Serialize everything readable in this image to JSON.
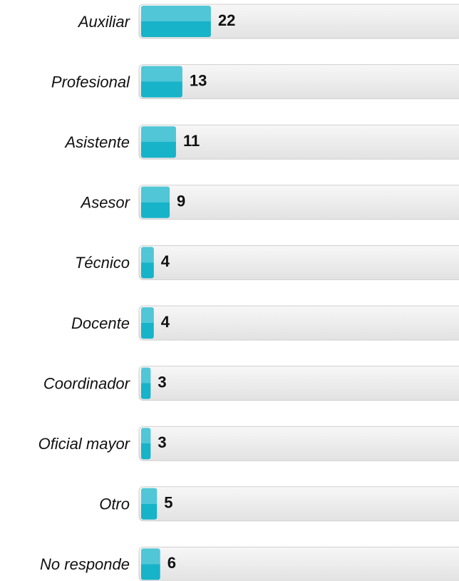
{
  "chart_data": {
    "type": "bar",
    "orientation": "horizontal",
    "categories": [
      "Auxiliar",
      "Profesional",
      "Asistente",
      "Asesor",
      "Técnico",
      "Docente",
      "Coordinador",
      "Oficial mayor",
      "Otro",
      "No responde"
    ],
    "values": [
      22,
      13,
      11,
      9,
      4,
      4,
      3,
      3,
      5,
      6
    ],
    "color": "#17b3c9",
    "xlim": [
      0,
      100
    ]
  }
}
